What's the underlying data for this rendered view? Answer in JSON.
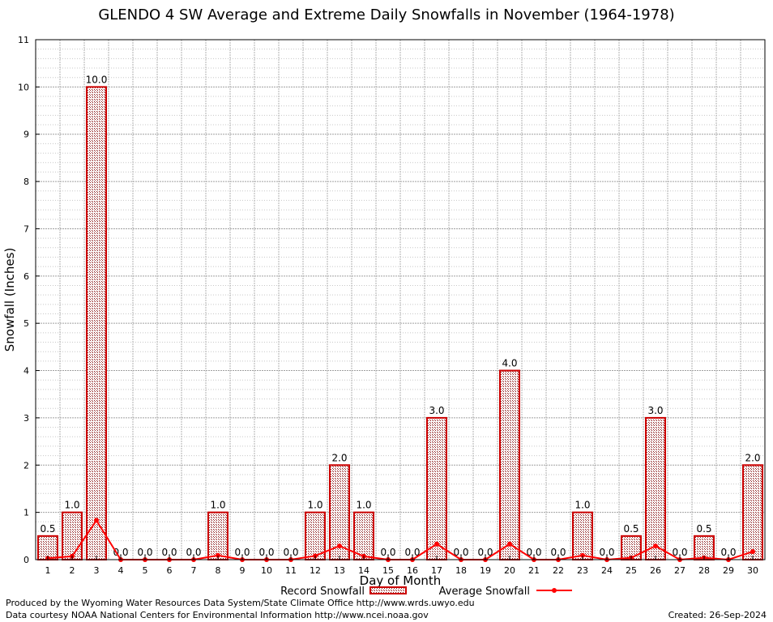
{
  "chart_data": {
    "type": "bar",
    "title": "GLENDO 4 SW Average and Extreme Daily Snowfalls in November (1964-1978)",
    "xlabel": "Day of Month",
    "ylabel": "Snowfall (Inches)",
    "ylim": [
      0,
      11
    ],
    "yticks": [
      "0",
      "1",
      "2",
      "3",
      "4",
      "5",
      "6",
      "7",
      "8",
      "9",
      "10",
      "11"
    ],
    "grid": true,
    "legend": "bottom",
    "categories": [
      "1",
      "2",
      "3",
      "4",
      "5",
      "6",
      "7",
      "8",
      "9",
      "10",
      "11",
      "12",
      "13",
      "14",
      "15",
      "16",
      "17",
      "18",
      "19",
      "20",
      "21",
      "22",
      "23",
      "24",
      "25",
      "26",
      "27",
      "28",
      "29",
      "30"
    ],
    "series": [
      {
        "name": "Record Snowfall",
        "kind": "bar",
        "color": "#cc0000",
        "values": [
          0.5,
          1.0,
          10.0,
          0.0,
          0.0,
          0.0,
          0.0,
          1.0,
          0.0,
          0.0,
          0.0,
          1.0,
          2.0,
          1.0,
          0.0,
          0.0,
          3.0,
          0.0,
          0.0,
          4.0,
          0.0,
          0.0,
          1.0,
          0.0,
          0.5,
          3.0,
          0.0,
          0.5,
          0.0,
          2.0
        ],
        "labels": [
          "0.5",
          "1.0",
          "10.0",
          "0.0",
          "0.0",
          "0.0",
          "0.0",
          "1.0",
          "0.0",
          "0.0",
          "0.0",
          "1.0",
          "2.0",
          "1.0",
          "0.0",
          "0.0",
          "3.0",
          "0.0",
          "0.0",
          "4.0",
          "0.0",
          "0.0",
          "1.0",
          "0.0",
          "0.5",
          "3.0",
          "0.0",
          "0.5",
          "0.0",
          "2.0"
        ]
      },
      {
        "name": "Average Snowfall",
        "kind": "line",
        "color": "#ff0000",
        "values": [
          0.03,
          0.07,
          0.83,
          0.0,
          0.0,
          0.0,
          0.0,
          0.09,
          0.0,
          0.0,
          0.0,
          0.08,
          0.29,
          0.07,
          0.0,
          0.0,
          0.33,
          0.0,
          0.0,
          0.33,
          0.0,
          0.0,
          0.09,
          0.0,
          0.04,
          0.29,
          0.0,
          0.04,
          0.0,
          0.17
        ]
      }
    ]
  },
  "footer": {
    "produced": "Produced by the Wyoming Water Resources Data System/State Climate Office http://www.wrds.uwyo.edu",
    "courtesy": "Data courtesy NOAA National Centers for Environmental Information http://www.ncei.noaa.gov",
    "created": "Created:  26-Sep-2024"
  }
}
